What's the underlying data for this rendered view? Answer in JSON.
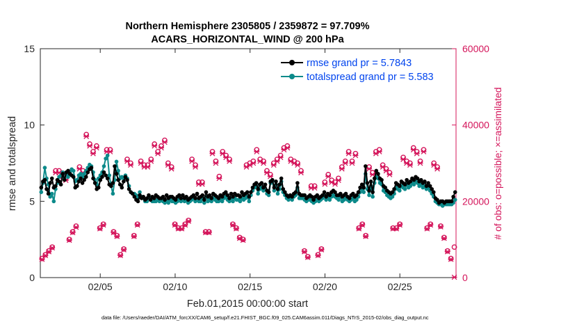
{
  "chart_data": {
    "type": "line",
    "title": "Northern Hemisphere 2305805 / 2359872 = 97.709%",
    "subtitle": "ACARS_HORIZONTAL_WIND @ 200 hPa",
    "xlabel": "Feb.01,2015 00:00:00 start",
    "ylabel": "rmse and totalspread",
    "ylabel_right": "# of obs: o=possible; ×=assimilated",
    "footnote": "data file: /Users/raeder/DAI/ATM_forcXX/CAM6_setup/f.e21.FHIST_BGC.f09_025.CAM6assim.011/Diags_NTrS_2015-02/obs_diag_output.nc",
    "x_range": [
      1,
      28.75
    ],
    "x_ticks": [
      {
        "value": 5,
        "label": "02/05"
      },
      {
        "value": 10,
        "label": "02/10"
      },
      {
        "value": 15,
        "label": "02/15"
      },
      {
        "value": 20,
        "label": "02/20"
      },
      {
        "value": 25,
        "label": "02/25"
      }
    ],
    "ylim": [
      0,
      15
    ],
    "y_ticks": [
      0,
      5,
      10,
      15
    ],
    "ylim_right": [
      0,
      60000
    ],
    "y_ticks_right": [
      0,
      20000,
      40000,
      60000
    ],
    "legend_position": "top-right",
    "series": [
      {
        "name": "rmse grand pr = 5.7843",
        "color": "#000000",
        "marker": "filled-circle",
        "values": [
          5.9,
          6.3,
          6.4,
          5.8,
          5.5,
          6.2,
          6.5,
          5.9,
          6.0,
          6.4,
          6.3,
          6.1,
          6.8,
          6.4,
          6.9,
          7.0,
          6.8,
          6.7,
          6.6,
          5.9,
          6.0,
          6.3,
          6.5,
          6.2,
          6.4,
          6.6,
          6.9,
          7.1,
          7.2,
          6.5,
          6.2,
          5.8,
          5.9,
          6.4,
          6.6,
          6.9,
          6.7,
          6.5,
          6.1,
          6.0,
          6.2,
          7.3,
          6.8,
          6.4,
          6.1,
          5.9,
          6.3,
          6.6,
          6.4,
          5.8,
          5.6,
          5.5,
          5.3,
          5.1,
          5.0,
          5.4,
          5.2,
          5.3,
          5.1,
          5.2,
          5.4,
          5.1,
          5.3,
          5.2,
          5.4,
          5.3,
          5.2,
          5.2,
          5.3,
          5.1,
          5.4,
          5.2,
          5.3,
          5.3,
          5.2,
          5.1,
          5.3,
          5.4,
          5.2,
          5.4,
          5.2,
          5.3,
          5.1,
          5.2,
          5.3,
          5.4,
          5.2,
          5.5,
          5.2,
          5.3,
          5.4,
          5.1,
          5.6,
          5.3,
          5.4,
          5.2,
          5.5,
          5.4,
          5.3,
          5.2,
          5.4,
          5.3,
          5.5,
          5.6,
          5.4,
          5.2,
          5.5,
          5.3,
          5.5,
          5.4,
          5.4,
          5.3,
          5.6,
          5.4,
          5.5,
          5.6,
          5.3,
          5.6,
          5.9,
          6.1,
          6.2,
          5.8,
          6.1,
          6.2,
          5.9,
          6.1,
          5.7,
          5.6,
          6.3,
          6.4,
          5.9,
          6.3,
          5.8,
          6.1,
          6.5,
          5.8,
          5.6,
          5.4,
          5.3,
          5.4,
          5.3,
          5.5,
          5.6,
          6.2,
          5.5,
          5.4,
          5.4,
          5.4,
          5.2,
          5.3,
          5.4,
          5.3,
          5.1,
          5.3,
          5.4,
          5.2,
          5.3,
          5.4,
          5.6,
          5.3,
          5.5,
          5.4,
          5.6,
          5.7,
          5.6,
          5.4,
          5.4,
          5.5,
          5.3,
          5.4,
          5.5,
          5.3,
          5.2,
          5.4,
          5.5,
          5.3,
          5.4,
          5.6,
          5.9,
          6.1,
          5.9,
          7.3,
          6.2,
          5.7,
          6.3,
          5.6,
          6.5,
          7.0,
          6.8,
          6.5,
          6.4,
          6.0,
          5.9,
          5.7,
          5.6,
          5.5,
          5.6,
          5.8,
          6.2,
          6.1,
          6.0,
          6.3,
          6.2,
          6.1,
          6.4,
          6.2,
          6.3,
          6.5,
          6.4,
          6.6,
          6.5,
          6.3,
          6.4,
          6.2,
          6.3,
          6.0,
          6.2,
          6.0,
          5.8,
          5.6,
          5.2,
          5.1,
          4.9,
          5.0,
          5.0,
          4.9,
          5.0,
          5.0,
          5.0,
          5.0,
          5.3,
          5.6
        ]
      },
      {
        "name": "totalspread grand pr = 5.583",
        "color": "#0c8a8a",
        "marker": "filled-circle",
        "values": [
          5.6,
          6.2,
          7.2,
          6.5,
          6.1,
          5.3,
          5.5,
          5.0,
          5.8,
          6.2,
          6.6,
          6.7,
          6.9,
          6.5,
          6.8,
          6.6,
          6.9,
          7.1,
          7.0,
          6.3,
          6.4,
          6.7,
          6.8,
          6.6,
          6.8,
          7.0,
          7.2,
          7.4,
          7.3,
          6.9,
          6.4,
          6.1,
          6.5,
          6.7,
          6.9,
          7.3,
          7.8,
          8.0,
          6.7,
          6.0,
          5.5,
          6.4,
          7.6,
          7.0,
          6.5,
          6.6,
          6.5,
          6.7,
          6.5,
          6.0,
          5.6,
          5.5,
          5.5,
          5.4,
          5.2,
          5.6,
          5.3,
          5.2,
          5.0,
          5.0,
          5.3,
          5.1,
          5.0,
          5.0,
          5.0,
          5.1,
          5.0,
          5.1,
          5.0,
          4.9,
          5.0,
          4.9,
          5.1,
          5.0,
          5.0,
          4.9,
          5.0,
          5.1,
          5.0,
          5.1,
          5.0,
          5.1,
          4.9,
          5.0,
          5.1,
          5.2,
          5.0,
          5.1,
          5.0,
          5.0,
          5.2,
          4.9,
          5.3,
          5.0,
          5.1,
          5.0,
          5.2,
          5.1,
          5.0,
          5.0,
          5.1,
          5.0,
          5.2,
          5.3,
          5.1,
          5.0,
          5.2,
          5.0,
          5.2,
          5.1,
          5.1,
          5.0,
          5.2,
          5.1,
          5.2,
          5.3,
          5.0,
          5.4,
          5.7,
          5.9,
          6.0,
          5.5,
          5.8,
          5.9,
          5.7,
          5.8,
          5.5,
          5.4,
          6.2,
          6.3,
          5.7,
          6.1,
          5.5,
          5.8,
          6.3,
          5.6,
          5.4,
          5.2,
          5.1,
          5.2,
          5.1,
          5.3,
          5.4,
          5.9,
          5.2,
          5.2,
          5.2,
          5.1,
          5.0,
          5.1,
          5.1,
          5.0,
          4.9,
          5.0,
          5.1,
          5.0,
          5.1,
          5.2,
          5.4,
          5.1,
          5.3,
          5.1,
          5.3,
          5.4,
          5.3,
          5.2,
          5.1,
          5.3,
          5.0,
          5.1,
          5.2,
          5.1,
          5.0,
          5.1,
          5.2,
          5.0,
          5.1,
          5.3,
          5.6,
          5.8,
          5.6,
          6.8,
          5.8,
          5.4,
          6.0,
          5.3,
          6.2,
          6.6,
          6.5,
          6.2,
          6.1,
          5.7,
          5.6,
          5.4,
          5.3,
          5.2,
          5.3,
          5.5,
          5.9,
          5.8,
          5.7,
          6.0,
          5.9,
          5.8,
          6.1,
          5.9,
          6.0,
          6.2,
          6.1,
          6.3,
          6.2,
          6.0,
          6.1,
          5.9,
          6.0,
          5.8,
          5.9,
          5.7,
          5.5,
          5.3,
          5.0,
          4.9,
          4.8,
          4.8,
          4.7,
          4.8,
          4.8,
          4.8,
          4.8,
          4.8,
          4.9,
          5.1
        ]
      },
      {
        "name": "obs possible",
        "axis": "right",
        "color": "#d4145a",
        "marker": "open-circle",
        "values": [
          5000,
          6000,
          7000,
          8000,
          28000,
          28000,
          27000,
          26000,
          10000,
          12000,
          13500,
          29000,
          28000,
          37500,
          35000,
          33000,
          34500,
          13000,
          14000,
          33500,
          33500,
          12000,
          11000,
          6000,
          7500,
          31000,
          30000,
          11000,
          14000,
          30500,
          29500,
          29500,
          31000,
          35000,
          33000,
          34500,
          36000,
          30000,
          29000,
          14000,
          13000,
          13000,
          14000,
          15000,
          31000,
          29500,
          25000,
          25000,
          12000,
          12000,
          33000,
          30500,
          26500,
          33000,
          32000,
          31000,
          14000,
          13000,
          10500,
          10000,
          29500,
          30000,
          30500,
          33500,
          31000,
          30500,
          28000,
          27000,
          30000,
          31000,
          32000,
          34000,
          34500,
          31000,
          30500,
          30000,
          28000,
          7000,
          5500,
          24000,
          24000,
          6000,
          7500,
          25000,
          27000,
          25500,
          25000,
          26000,
          29000,
          30500,
          33000,
          30500,
          32500,
          13000,
          14000,
          11000,
          29000,
          27500,
          33000,
          33500,
          29500,
          28500,
          27500,
          13000,
          13000,
          14000,
          31500,
          30500,
          30000,
          34000,
          33000,
          30500,
          33500,
          13000,
          14000,
          30000,
          29000,
          13500,
          10500,
          7000,
          5000,
          8000
        ]
      },
      {
        "name": "obs assimilated",
        "axis": "right",
        "color": "#d4145a",
        "marker": "cross",
        "values": [
          4800,
          5800,
          6800,
          7800,
          27500,
          27500,
          26500,
          25500,
          9800,
          11800,
          13200,
          28500,
          27500,
          37000,
          34500,
          32500,
          34000,
          12800,
          13800,
          33000,
          33000,
          11800,
          10800,
          5800,
          7300,
          30500,
          29500,
          10800,
          13800,
          30000,
          29000,
          29000,
          30500,
          34500,
          32500,
          34000,
          35500,
          29500,
          28500,
          13800,
          12800,
          12800,
          13800,
          14800,
          30500,
          29000,
          24500,
          24500,
          11800,
          11800,
          32500,
          30000,
          26000,
          32500,
          31500,
          30500,
          13800,
          12800,
          10300,
          9800,
          29000,
          29500,
          30000,
          33000,
          30500,
          30000,
          27500,
          26500,
          29500,
          30500,
          31500,
          33500,
          34000,
          30500,
          30000,
          29500,
          27500,
          6800,
          5300,
          23500,
          23500,
          5800,
          7300,
          24500,
          26500,
          25000,
          24500,
          25500,
          28500,
          30000,
          32500,
          30000,
          32000,
          12800,
          13800,
          10800,
          28500,
          27000,
          32500,
          33000,
          29000,
          28000,
          27000,
          12800,
          12800,
          13800,
          31000,
          30000,
          29500,
          33500,
          32500,
          30000,
          33000,
          12800,
          13800,
          29500,
          28500,
          13300,
          10300,
          6800,
          4800,
          100
        ]
      }
    ]
  }
}
